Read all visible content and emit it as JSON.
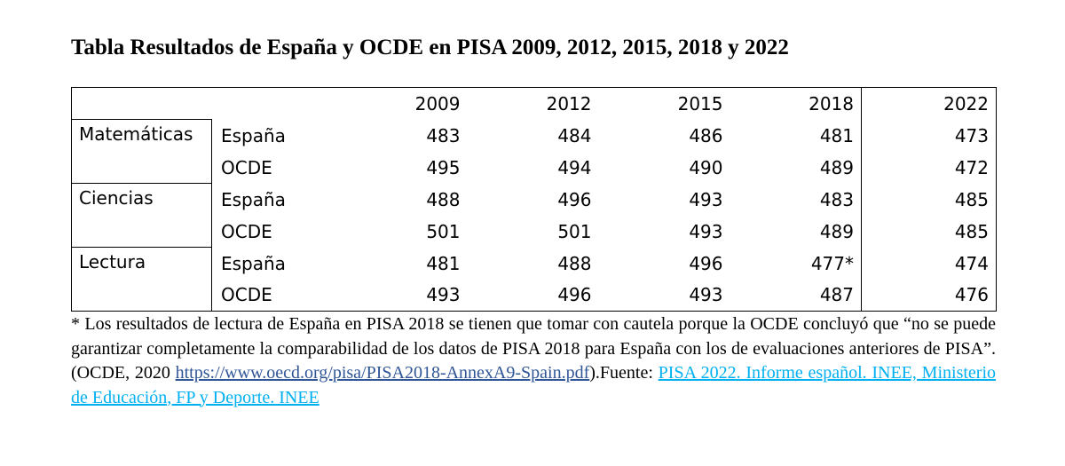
{
  "title": "Tabla Resultados de España y OCDE en PISA 2009, 2012, 2015, 2018 y 2022",
  "table": {
    "years": [
      "2009",
      "2012",
      "2015",
      "2018",
      "2022"
    ],
    "groups": [
      {
        "subject": "Matemáticas",
        "rows": [
          {
            "label": "España",
            "values": [
              "483",
              "484",
              "486",
              "481",
              "473"
            ]
          },
          {
            "label": "OCDE",
            "values": [
              "495",
              "494",
              "490",
              "489",
              "472"
            ]
          }
        ]
      },
      {
        "subject": "Ciencias",
        "rows": [
          {
            "label": "España",
            "values": [
              "488",
              "496",
              "493",
              "483",
              "485"
            ]
          },
          {
            "label": "OCDE",
            "values": [
              "501",
              "501",
              "493",
              "489",
              "485"
            ]
          }
        ]
      },
      {
        "subject": "Lectura",
        "rows": [
          {
            "label": "España",
            "values": [
              "481",
              "488",
              "496",
              "477*",
              "474"
            ]
          },
          {
            "label": "OCDE",
            "values": [
              "493",
              "496",
              "493",
              "487",
              "476"
            ]
          }
        ]
      }
    ]
  },
  "note": {
    "text": "* Los resultados de lectura de España en PISA 2018 se tienen que tomar con cautela porque la OCDE concluyó que “no se puede garantizar completamente la comparabilidad de los datos de PISA 2018 para España con los de evaluaciones anteriores de PISA”. (OCDE, 2020 ",
    "link1": "https://www.oecd.org/pisa/PISA2018-AnnexA9-Spain.pdf",
    "mid": ").Fuente: ",
    "link2": "PISA 2022. Informe español. INEE, Ministerio de Educación, FP y Deporte. INEE"
  }
}
